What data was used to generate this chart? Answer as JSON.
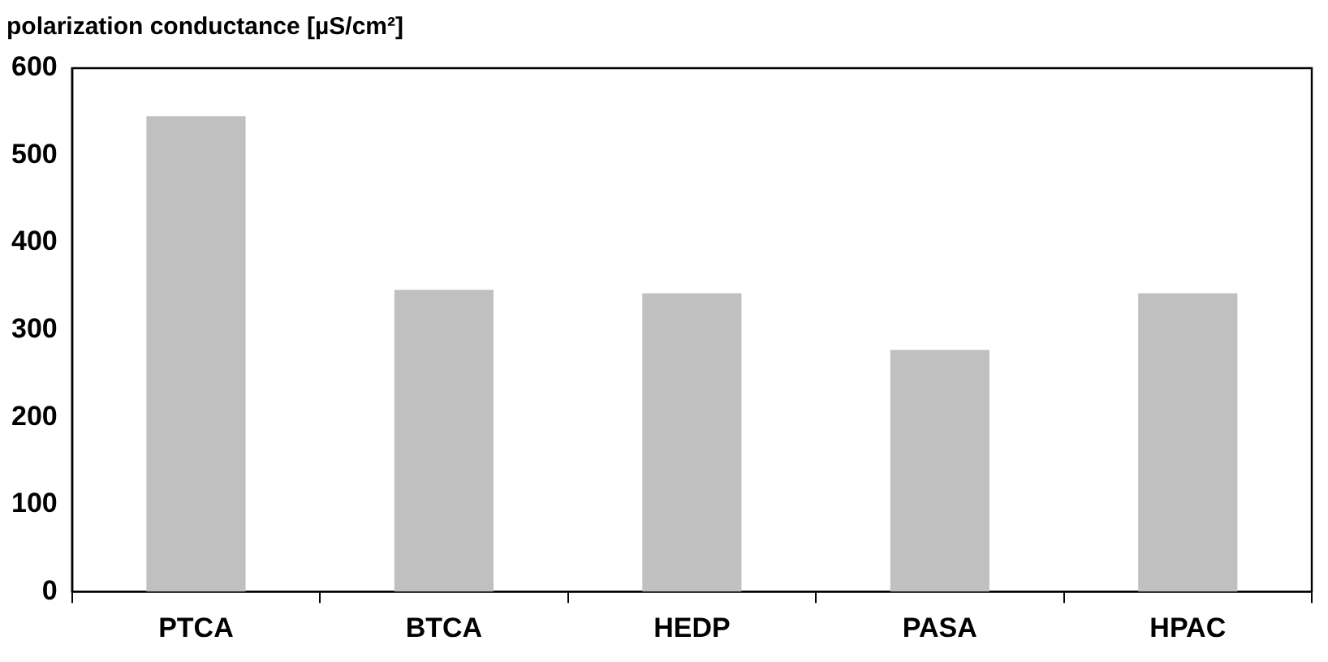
{
  "chart_data": {
    "type": "bar",
    "ylabel": "polarization conductance [µS/cm²]",
    "categories": [
      "PTCA",
      "BTCA",
      "HEDP",
      "PASA",
      "HPAC"
    ],
    "values": [
      545,
      346,
      342,
      277,
      342
    ],
    "color": "#c0c0c0",
    "ylim": [
      0,
      600
    ],
    "yticks": [
      0,
      100,
      200,
      300,
      400,
      500,
      600
    ],
    "grid": false,
    "legend": false
  }
}
